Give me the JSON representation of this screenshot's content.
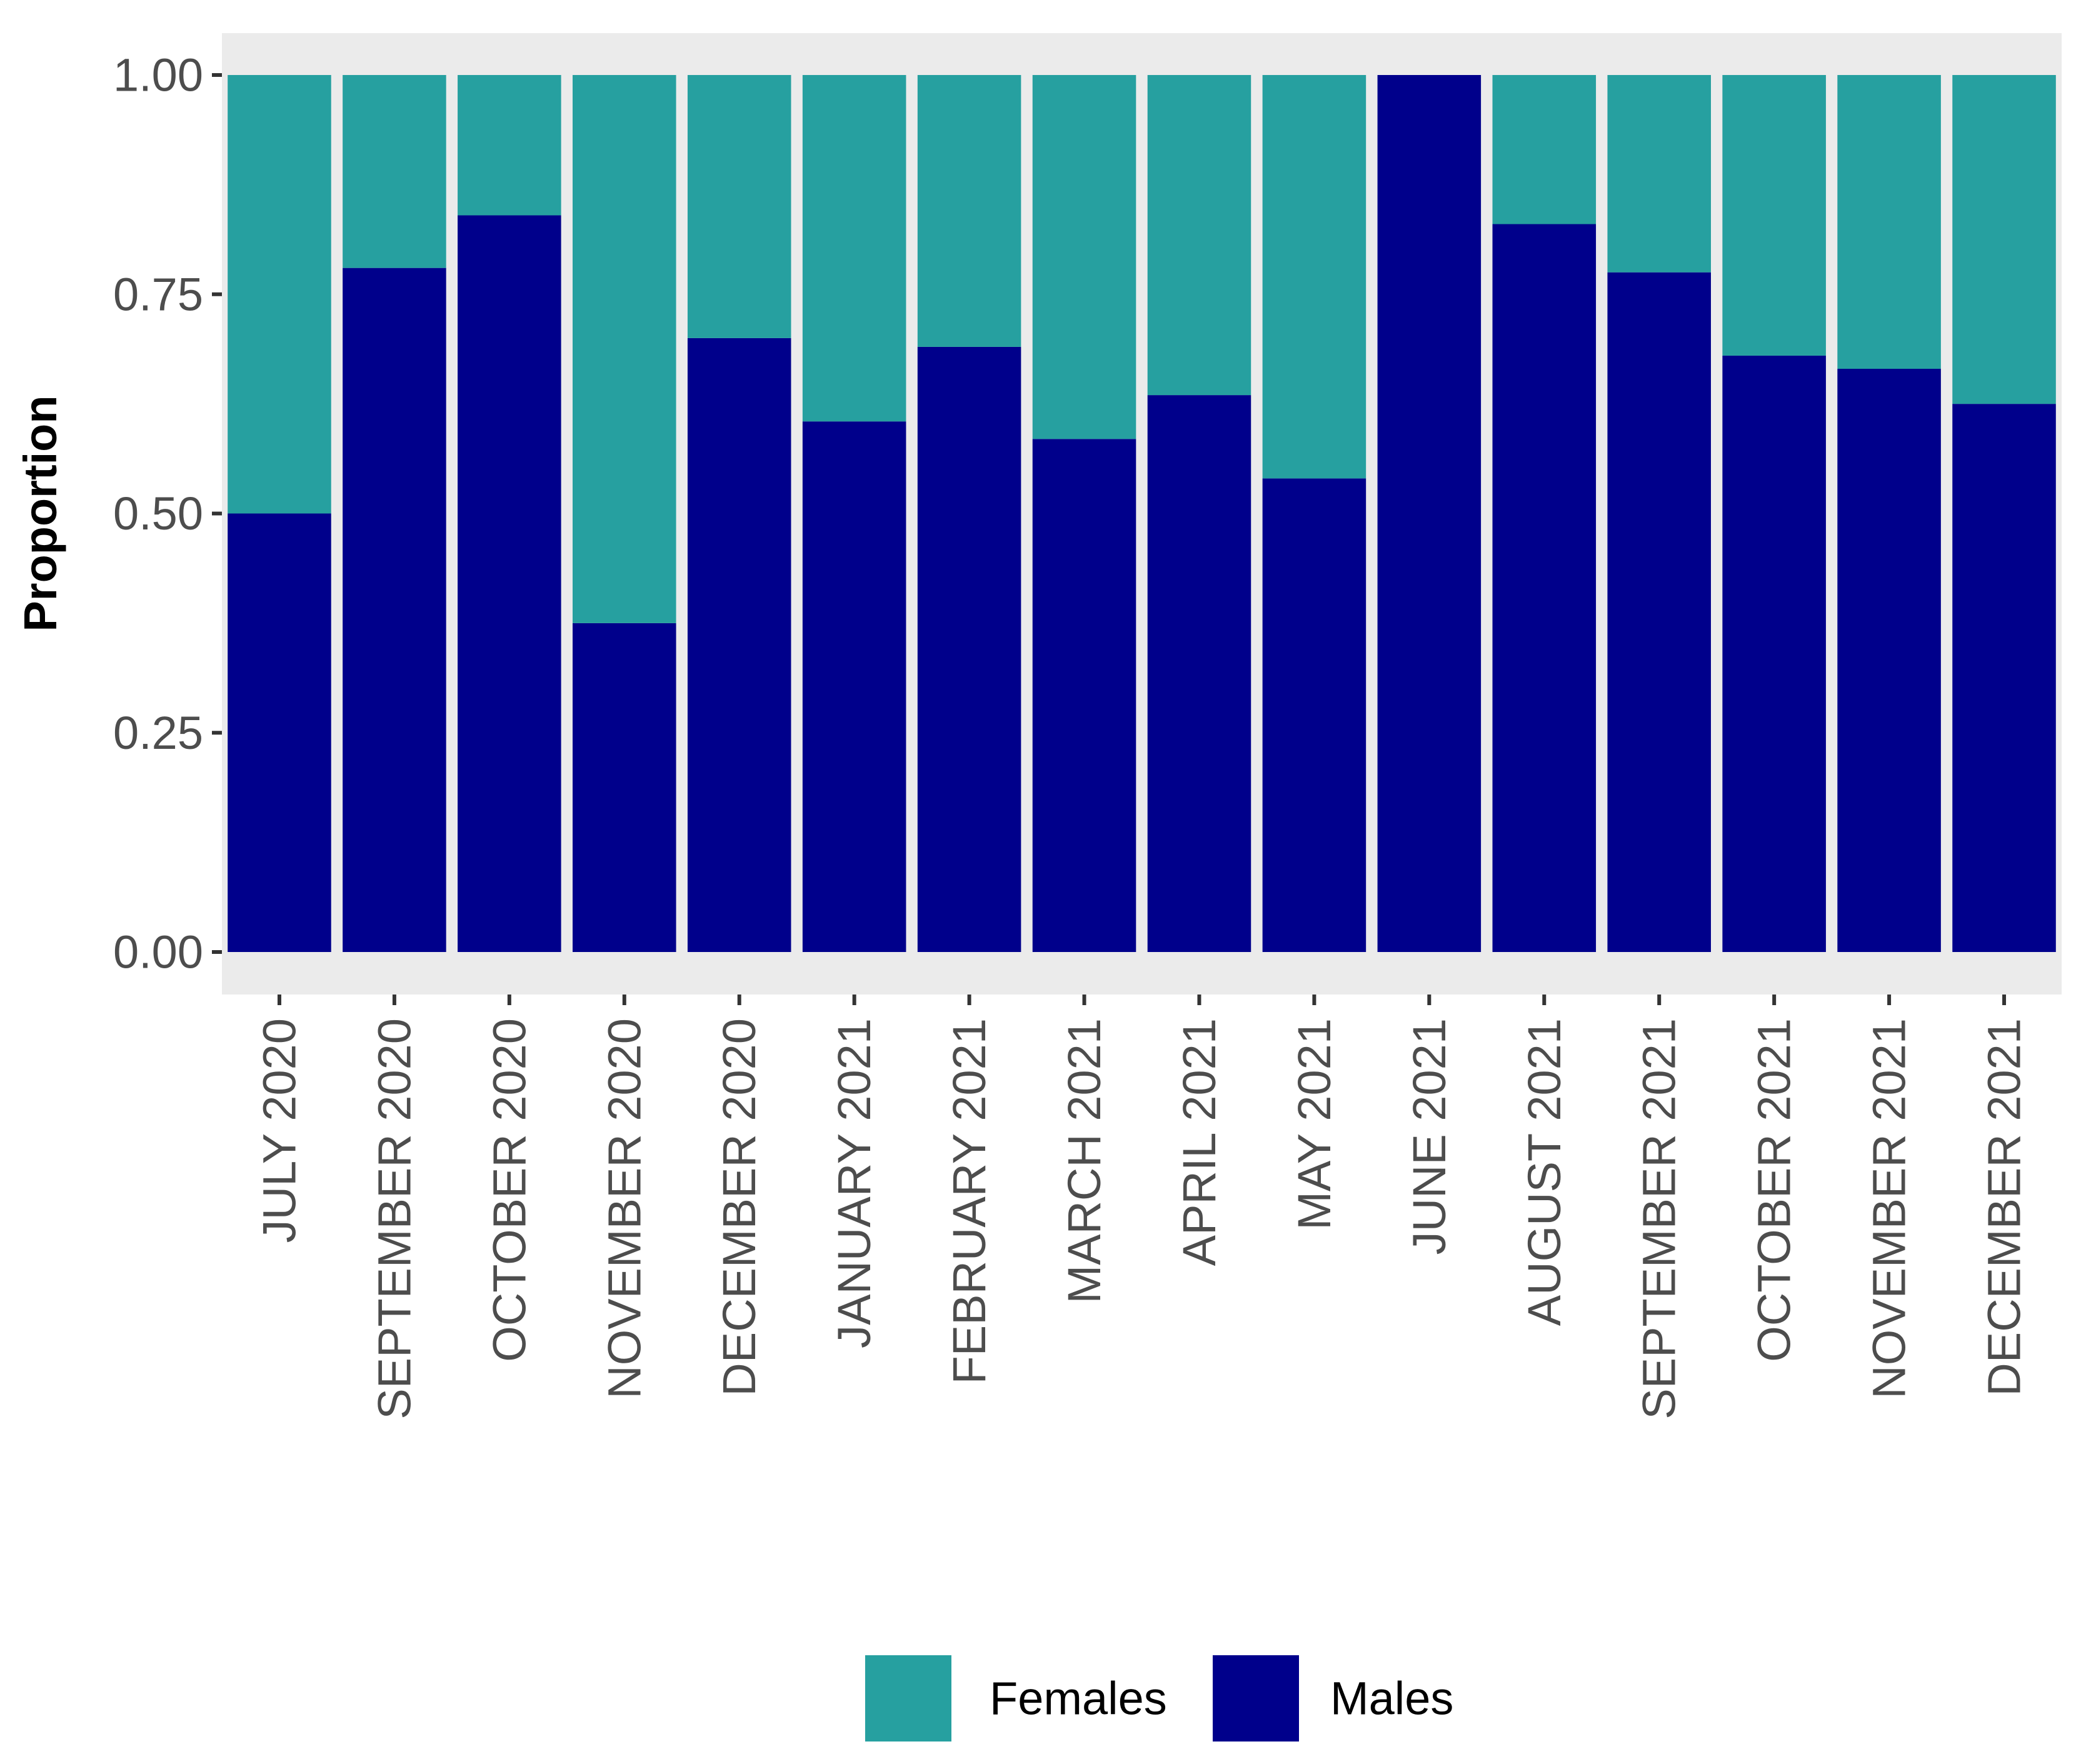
{
  "chart_data": {
    "type": "bar",
    "stacked": true,
    "title": "",
    "xlabel": "",
    "ylabel": "Proportion",
    "ylim": [
      0,
      1
    ],
    "yticks": [
      "0.00",
      "0.25",
      "0.50",
      "0.75",
      "1.00"
    ],
    "ytick_values": [
      0,
      0.25,
      0.5,
      0.75,
      1.0
    ],
    "categories": [
      "JULY 2020",
      "SEPTEMBER 2020",
      "OCTOBER 2020",
      "NOVEMBER 2020",
      "DECEMBER 2020",
      "JANUARY 2021",
      "FEBRUARY 2021",
      "MARCH 2021",
      "APRIL 2021",
      "MAY 2021",
      "JUNE 2021",
      "AUGUST 2021",
      "SEPTEMBER 2021",
      "OCTOBER 2021",
      "NOVEMBER 2021",
      "DECEMBER 2021"
    ],
    "series": [
      {
        "name": "Males",
        "color": "#00008B",
        "values": [
          0.5,
          0.78,
          0.84,
          0.375,
          0.7,
          0.605,
          0.69,
          0.585,
          0.635,
          0.54,
          1.0,
          0.83,
          0.775,
          0.68,
          0.665,
          0.625
        ]
      },
      {
        "name": "Females",
        "color": "#26A0A0",
        "values": [
          0.5,
          0.22,
          0.16,
          0.625,
          0.3,
          0.395,
          0.31,
          0.415,
          0.365,
          0.46,
          0.0,
          0.17,
          0.225,
          0.32,
          0.335,
          0.375
        ]
      }
    ],
    "legend": {
      "position": "bottom",
      "entries": [
        {
          "label": "Females",
          "color": "#26A0A0"
        },
        {
          "label": "Males",
          "color": "#00008B"
        }
      ]
    },
    "panel_background": "#EBEBEB",
    "grid": false
  }
}
